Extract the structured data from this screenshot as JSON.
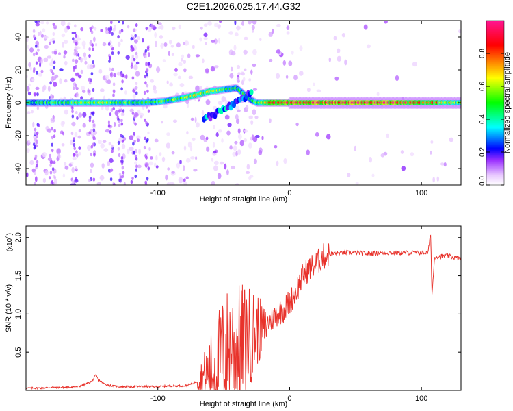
{
  "title": "C2E1.2026.025.17.44.G32",
  "chart_data": [
    {
      "type": "heatmap",
      "title": "C2E1.2026.025.17.44.G32",
      "xlabel": "Height of straight line (km)",
      "ylabel": "Frequency (Hz)",
      "xlim": [
        -200,
        130
      ],
      "ylim": [
        -50,
        50
      ],
      "x_ticks": [
        -100,
        0,
        100
      ],
      "x_tick_labels": [
        "-100",
        "0",
        "100"
      ],
      "y_ticks": [
        -40,
        -20,
        0,
        20,
        40
      ],
      "y_tick_labels": [
        "-40",
        "-20",
        "0",
        "20",
        "40"
      ],
      "colorbar": {
        "label": "Normalized spectral amplitude",
        "range": [
          0.0,
          1.0
        ],
        "ticks": [
          0.0,
          0.2,
          0.4,
          0.6,
          0.8
        ],
        "tick_labels": [
          "0.0",
          "0.2",
          "0.4",
          "0.6",
          "0.8"
        ],
        "colormap": [
          "#ffffff",
          "#e8c8ff",
          "#9b30ff",
          "#0000ff",
          "#00ffff",
          "#00ff00",
          "#ffff00",
          "#ff8000",
          "#ff0000",
          "#ff1493"
        ]
      },
      "ridge": {
        "description": "main spectral ridge (frequency vs height)",
        "x": [
          -200,
          -170,
          -140,
          -110,
          -95,
          -80,
          -70,
          -60,
          -50,
          -40,
          -30,
          -25,
          -20,
          -10,
          0,
          20,
          40,
          60,
          80,
          100,
          130
        ],
        "freq": [
          0,
          0,
          0,
          0,
          1,
          3,
          5,
          7,
          8,
          9,
          2,
          0,
          0,
          0,
          0,
          0,
          0,
          0,
          0,
          0,
          0
        ],
        "amplitude": [
          0.45,
          0.55,
          0.6,
          0.5,
          0.55,
          0.6,
          0.65,
          0.6,
          0.55,
          0.5,
          0.45,
          0.55,
          0.7,
          0.85,
          0.9,
          0.92,
          0.93,
          0.92,
          0.9,
          0.85,
          0.55
        ]
      },
      "lower_branch": {
        "x": [
          -65,
          -55,
          -45,
          -35,
          -28
        ],
        "freq": [
          -10,
          -6,
          -2,
          2,
          7
        ]
      }
    },
    {
      "type": "line",
      "xlabel": "Height of straight line (km)",
      "ylabel": "SNR (10 * v/v)",
      "y_multiplier_label": "(x10",
      "y_multiplier_exponent": "4",
      "xlim": [
        -200,
        130
      ],
      "ylim": [
        0,
        2.15
      ],
      "x_ticks": [
        -100,
        0,
        100
      ],
      "x_tick_labels": [
        "-100",
        "0",
        "100"
      ],
      "y_ticks": [
        0.5,
        1.0,
        1.5,
        2.0
      ],
      "y_tick_labels": [
        "0.5",
        "1.0",
        "1.5",
        "2.0"
      ],
      "series": [
        {
          "name": "SNR",
          "color": "#e8322b",
          "x": [
            -200,
            -190,
            -180,
            -170,
            -160,
            -155,
            -150,
            -147,
            -145,
            -140,
            -135,
            -130,
            -120,
            -110,
            -100,
            -90,
            -80,
            -75,
            -70,
            -65,
            -60,
            -55,
            -50,
            -45,
            -40,
            -35,
            -30,
            -25,
            -20,
            -15,
            -10,
            -5,
            0,
            5,
            10,
            15,
            20,
            25,
            30,
            40,
            50,
            60,
            70,
            80,
            90,
            100,
            105,
            107,
            108,
            110,
            120,
            130
          ],
          "y": [
            0.03,
            0.03,
            0.04,
            0.04,
            0.05,
            0.08,
            0.12,
            0.2,
            0.14,
            0.08,
            0.06,
            0.05,
            0.05,
            0.05,
            0.05,
            0.06,
            0.06,
            0.08,
            0.12,
            0.18,
            0.25,
            0.35,
            0.5,
            0.6,
            0.55,
            0.65,
            0.7,
            0.8,
            0.8,
            0.9,
            1.0,
            1.05,
            1.15,
            1.3,
            1.5,
            1.6,
            1.65,
            1.75,
            1.78,
            1.8,
            1.8,
            1.79,
            1.8,
            1.8,
            1.8,
            1.8,
            1.8,
            2.05,
            1.25,
            1.75,
            1.76,
            1.72
          ],
          "noise_span": [
            -70,
            -15
          ]
        }
      ]
    }
  ]
}
